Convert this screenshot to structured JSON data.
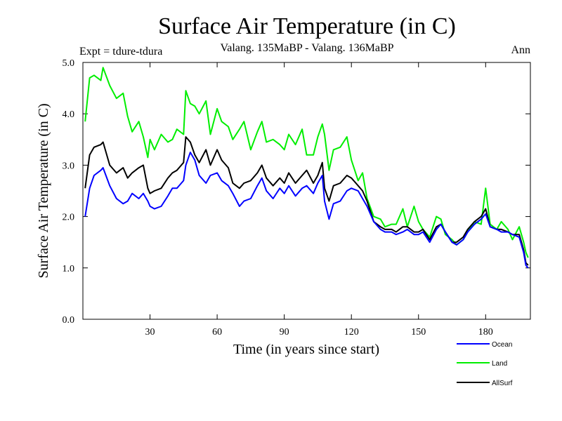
{
  "chart_data": {
    "type": "line",
    "title": "Surface Air Temperature (in C)",
    "subtitle_left": "Expt = tdure-tdura",
    "subtitle_center": "Valang.  135MaBP - Valang.  136MaBP",
    "subtitle_right": "Ann",
    "xlabel": "Time (in years since start)",
    "ylabel": "Surface Air Temperature (in C)",
    "xlim": [
      0,
      200
    ],
    "ylim": [
      0,
      5
    ],
    "xticks": [
      30,
      60,
      90,
      120,
      150,
      180
    ],
    "xtick_labels": [
      "30",
      "60",
      "90",
      "120",
      "150",
      "180"
    ],
    "yticks": [
      0,
      1,
      2,
      3,
      4,
      5
    ],
    "ytick_labels": [
      "0.0",
      "1.0",
      "2.0",
      "3.0",
      "4.0",
      "5.0"
    ],
    "grid": false,
    "legend_position": "bottom-right",
    "x": [
      1,
      3,
      5,
      8,
      9,
      12,
      15,
      18,
      20,
      22,
      25,
      27,
      29,
      30,
      32,
      35,
      38,
      40,
      42,
      45,
      46,
      48,
      50,
      52,
      55,
      57,
      60,
      62,
      65,
      67,
      70,
      72,
      75,
      78,
      80,
      82,
      85,
      88,
      90,
      92,
      95,
      98,
      100,
      103,
      105,
      107,
      108,
      110,
      112,
      115,
      118,
      120,
      123,
      125,
      127,
      130,
      133,
      135,
      138,
      140,
      143,
      145,
      148,
      150,
      152,
      155,
      158,
      160,
      162,
      165,
      167,
      170,
      172,
      175,
      178,
      180,
      182,
      185,
      187,
      190,
      192,
      195,
      197,
      198,
      199
    ],
    "series": [
      {
        "name": "Ocean",
        "color": "#0000ff",
        "values": [
          2.0,
          2.55,
          2.8,
          2.9,
          2.95,
          2.6,
          2.35,
          2.25,
          2.3,
          2.45,
          2.35,
          2.45,
          2.3,
          2.2,
          2.15,
          2.2,
          2.4,
          2.55,
          2.55,
          2.7,
          3.0,
          3.25,
          3.1,
          2.8,
          2.65,
          2.8,
          2.85,
          2.7,
          2.6,
          2.45,
          2.2,
          2.3,
          2.35,
          2.6,
          2.75,
          2.5,
          2.35,
          2.55,
          2.45,
          2.6,
          2.4,
          2.55,
          2.6,
          2.45,
          2.65,
          2.8,
          2.3,
          1.95,
          2.25,
          2.3,
          2.5,
          2.55,
          2.5,
          2.35,
          2.2,
          1.9,
          1.75,
          1.7,
          1.7,
          1.65,
          1.7,
          1.75,
          1.65,
          1.65,
          1.7,
          1.5,
          1.75,
          1.85,
          1.7,
          1.5,
          1.45,
          1.55,
          1.7,
          1.85,
          1.95,
          2.05,
          1.8,
          1.75,
          1.7,
          1.7,
          1.65,
          1.6,
          1.3,
          1.05,
          1.0
        ]
      },
      {
        "name": "Land",
        "color": "#00ee00",
        "values": [
          3.85,
          4.7,
          4.75,
          4.65,
          4.9,
          4.55,
          4.3,
          4.4,
          3.95,
          3.65,
          3.85,
          3.55,
          3.15,
          3.5,
          3.3,
          3.6,
          3.45,
          3.5,
          3.7,
          3.6,
          4.45,
          4.2,
          4.15,
          4.0,
          4.25,
          3.6,
          4.1,
          3.85,
          3.75,
          3.5,
          3.7,
          3.85,
          3.3,
          3.65,
          3.85,
          3.45,
          3.5,
          3.4,
          3.3,
          3.6,
          3.4,
          3.7,
          3.2,
          3.2,
          3.55,
          3.8,
          3.6,
          2.9,
          3.3,
          3.35,
          3.55,
          3.1,
          2.7,
          2.85,
          2.35,
          2.0,
          1.95,
          1.8,
          1.85,
          1.85,
          2.15,
          1.8,
          2.2,
          1.9,
          1.75,
          1.6,
          2.0,
          1.95,
          1.65,
          1.55,
          1.45,
          1.55,
          1.7,
          1.9,
          1.85,
          2.55,
          1.85,
          1.75,
          1.9,
          1.75,
          1.55,
          1.8,
          1.5,
          1.3,
          1.2
        ]
      },
      {
        "name": "AllSurf",
        "color": "#000000",
        "values": [
          2.55,
          3.2,
          3.35,
          3.4,
          3.45,
          3.0,
          2.85,
          2.95,
          2.75,
          2.85,
          2.95,
          3.0,
          2.55,
          2.45,
          2.5,
          2.55,
          2.75,
          2.85,
          2.9,
          3.05,
          3.55,
          3.45,
          3.2,
          3.05,
          3.3,
          3.0,
          3.3,
          3.1,
          2.95,
          2.65,
          2.55,
          2.65,
          2.7,
          2.85,
          3.0,
          2.75,
          2.6,
          2.75,
          2.65,
          2.85,
          2.65,
          2.8,
          2.9,
          2.65,
          2.8,
          3.05,
          2.55,
          2.3,
          2.6,
          2.65,
          2.8,
          2.75,
          2.6,
          2.5,
          2.3,
          1.9,
          1.8,
          1.75,
          1.75,
          1.7,
          1.8,
          1.8,
          1.7,
          1.7,
          1.75,
          1.55,
          1.8,
          1.85,
          1.7,
          1.5,
          1.5,
          1.6,
          1.75,
          1.9,
          2.0,
          2.15,
          1.8,
          1.75,
          1.75,
          1.7,
          1.65,
          1.65,
          1.35,
          1.1,
          1.05
        ]
      }
    ]
  }
}
